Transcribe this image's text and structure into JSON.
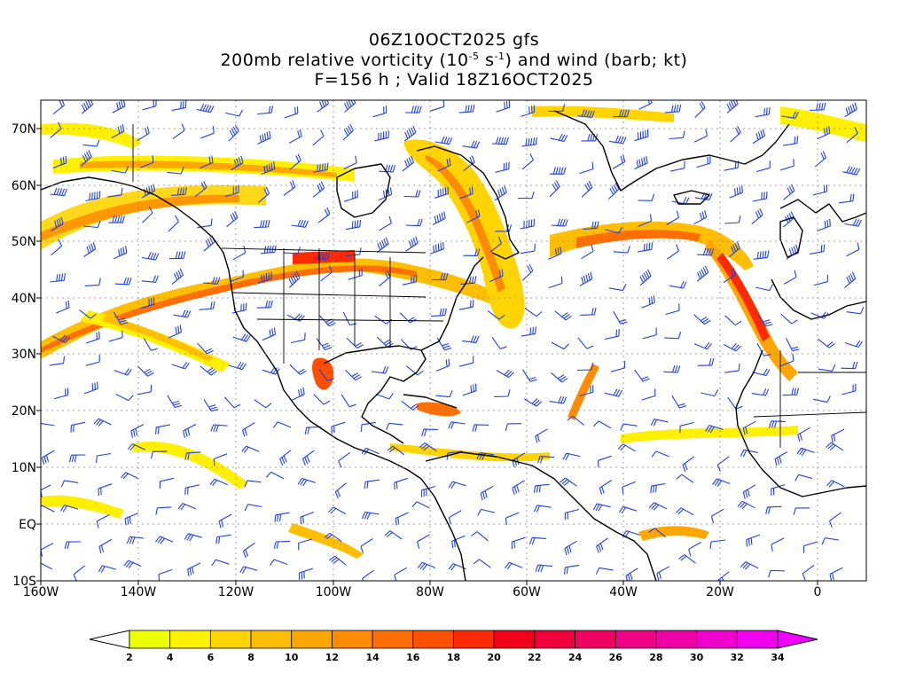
{
  "title": {
    "line1": "06Z10OCT2025 gfs",
    "line2_a": "200mb relative vorticity (10",
    "line2_exp1": "-5",
    "line2_b": " s",
    "line2_exp2": "-1",
    "line2_c": ") and wind (barb; kt)",
    "line3": "F=156 h ; Valid 18Z16OCT2025"
  },
  "map": {
    "lat_labels": [
      "70N",
      "60N",
      "50N",
      "40N",
      "30N",
      "20N",
      "10N",
      "EQ",
      "10S"
    ],
    "lon_labels": [
      "160W",
      "140W",
      "120W",
      "100W",
      "80W",
      "60W",
      "40W",
      "20W",
      "0"
    ],
    "colors": {
      "coast": "#000000",
      "barb": "#1f3fe6",
      "grid": "#888888"
    }
  },
  "colorbar": {
    "levels": [
      "2",
      "4",
      "6",
      "8",
      "10",
      "12",
      "14",
      "16",
      "18",
      "20",
      "22",
      "24",
      "26",
      "28",
      "30",
      "32",
      "34"
    ],
    "colors": [
      "#ffffff",
      "#eeff00",
      "#fff000",
      "#ffd400",
      "#ffbe00",
      "#ffa600",
      "#ff8c00",
      "#ff6e00",
      "#ff4f00",
      "#ff2a00",
      "#f2001a",
      "#f0003c",
      "#f00060",
      "#f00085",
      "#f000a8",
      "#f000cc",
      "#f000ee",
      "#f000ff"
    ]
  }
}
